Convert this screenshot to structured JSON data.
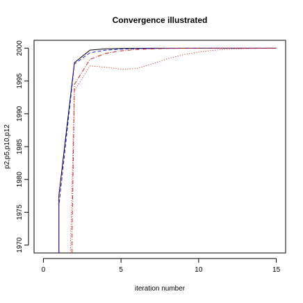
{
  "chart_data": {
    "type": "line",
    "title": "Convergence illustrated",
    "xlabel": "iteration number",
    "ylabel": "p2,p5,p10,p12",
    "xlim": [
      -0.6,
      15.6
    ],
    "ylim": [
      1968.8,
      2001.2
    ],
    "x_ticks": [
      0,
      5,
      10,
      15
    ],
    "y_ticks": [
      1970,
      1975,
      1980,
      1985,
      1990,
      1995,
      2000
    ],
    "grid": false,
    "legend": "none",
    "series": [
      {
        "color": "#000000",
        "linestyle": "solid",
        "x": [
          1,
          1,
          2,
          3,
          4,
          5,
          6,
          7,
          8,
          9,
          10,
          11,
          12,
          13,
          14,
          15
        ],
        "y": [
          1968.8,
          1977.6,
          1997.8,
          1999.7,
          1999.9,
          1999.95,
          1999.98,
          1999.99,
          2000,
          2000,
          2000,
          2000,
          2000,
          2000,
          2000,
          2000
        ]
      },
      {
        "color": "#1a1aff",
        "linestyle": "dashed",
        "x": [
          1,
          1,
          2,
          3,
          4,
          5,
          6,
          7,
          8,
          9,
          10,
          11,
          12,
          13,
          14,
          15
        ],
        "y": [
          1968.8,
          1976.0,
          1997.6,
          1999.3,
          1999.7,
          1999.85,
          1999.92,
          1999.96,
          1999.98,
          1999.99,
          2000,
          2000,
          2000,
          2000,
          2000,
          2000
        ]
      },
      {
        "color": "#cc2222",
        "linestyle": "dashdot",
        "x": [
          1.85,
          1.85,
          2,
          3,
          4,
          5,
          6,
          7,
          8,
          9,
          10,
          11,
          12,
          13,
          14,
          15
        ],
        "y": [
          1968.8,
          1972.0,
          1994.5,
          1998.3,
          1999.2,
          1999.6,
          1999.8,
          1999.9,
          1999.95,
          1999.98,
          1999.99,
          2000,
          2000,
          2000,
          2000,
          2000
        ]
      },
      {
        "color": "#dd3333",
        "linestyle": "dotted",
        "x": [
          1.75,
          1.75,
          2,
          3,
          4,
          5,
          6,
          7,
          8,
          9,
          10,
          11,
          12,
          13,
          14,
          15
        ],
        "y": [
          1968.8,
          1970.5,
          1993.5,
          1997.3,
          1997.1,
          1996.8,
          1996.9,
          1997.6,
          1998.4,
          1999.0,
          1999.4,
          1999.7,
          1999.85,
          1999.93,
          1999.97,
          2000
        ]
      }
    ]
  }
}
